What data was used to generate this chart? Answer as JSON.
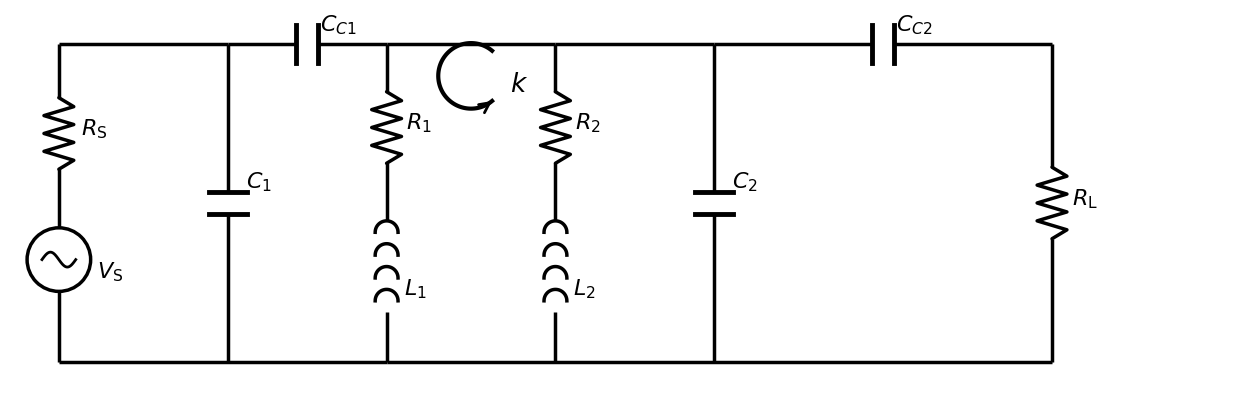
{
  "background_color": "#ffffff",
  "line_color": "#000000",
  "line_width": 2.5,
  "font_size": 16,
  "fig_width": 12.4,
  "fig_height": 4.06,
  "labels": {
    "CC1": "$C_{C1}$",
    "RS": "$R_{\\mathrm{S}}$",
    "VS": "$V_{\\mathrm{S}}$",
    "C1": "$C_1$",
    "R1": "$R_1$",
    "L1": "$L_1$",
    "k": "$k$",
    "R2": "$R_2$",
    "C2": "$C_2$",
    "L2": "$L_2$",
    "CC2": "$C_{C2}$",
    "RL": "$R_{\\mathrm{L}}$"
  }
}
